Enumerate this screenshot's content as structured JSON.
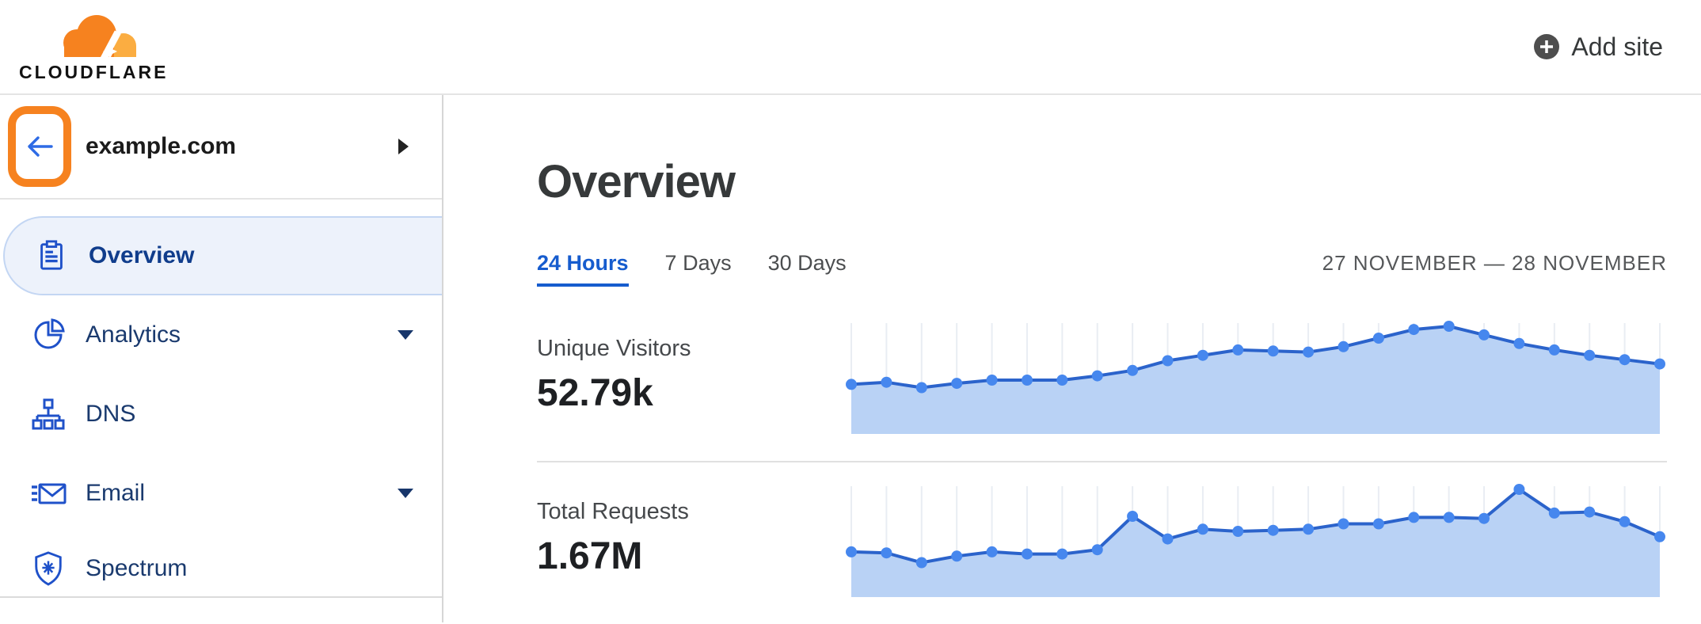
{
  "header": {
    "logo_text": "CLOUDFLARE",
    "add_site_label": "Add site"
  },
  "sidebar": {
    "site_name": "example.com",
    "items": [
      {
        "label": "Overview",
        "icon": "clipboard-icon",
        "active": true,
        "expandable": false
      },
      {
        "label": "Analytics",
        "icon": "pie-chart-icon",
        "active": false,
        "expandable": true
      },
      {
        "label": "DNS",
        "icon": "network-icon",
        "active": false,
        "expandable": false
      },
      {
        "label": "Email",
        "icon": "email-icon",
        "active": false,
        "expandable": true
      },
      {
        "label": "Spectrum",
        "icon": "shield-icon",
        "active": false,
        "expandable": false
      }
    ]
  },
  "main": {
    "title": "Overview",
    "tabs": [
      {
        "label": "24 Hours",
        "active": true
      },
      {
        "label": "7 Days",
        "active": false
      },
      {
        "label": "30 Days",
        "active": false
      }
    ],
    "date_range": "27 NOVEMBER — 28 NOVEMBER"
  },
  "chart_data": [
    {
      "type": "area",
      "title": "Unique Visitors",
      "value_label": "52.79k",
      "period": "24 Hours",
      "values": [
        46,
        48,
        43,
        47,
        50,
        50,
        50,
        54,
        59,
        68,
        73,
        78,
        77,
        76,
        81,
        89,
        97,
        100,
        92,
        84,
        78,
        73,
        69,
        65
      ],
      "ylim": [
        0,
        100
      ],
      "units": "relative height 0-100 (no axis labels shown in UI)",
      "grid": "vertical line per data point, above the curve only",
      "legend": "none"
    },
    {
      "type": "area",
      "title": "Total Requests",
      "value_label": "1.67M",
      "period": "24 Hours",
      "values": [
        42,
        41,
        32,
        38,
        42,
        40,
        40,
        44,
        75,
        54,
        63,
        61,
        62,
        63,
        68,
        68,
        74,
        74,
        73,
        100,
        78,
        79,
        70,
        56
      ],
      "ylim": [
        0,
        100
      ],
      "units": "relative height 0-100 (no axis labels shown in UI)",
      "grid": "vertical line per data point, above the curve only",
      "legend": "none"
    }
  ],
  "colors": {
    "brand_orange": "#F6821F",
    "brand_orange_light": "#FBAD41",
    "highlight_box_orange": "#F6821F",
    "active_tab_blue": "#165CCE",
    "back_arrow_blue": "#2E6BE5",
    "nav_text_navy": "#1A3A6E",
    "nav_icon_blue": "#1F51C9",
    "active_pill_bg": "#EDF2FB",
    "active_pill_border": "#C3D6F3",
    "chart_line": "#2B63CB",
    "chart_dot": "#4687EE",
    "chart_fill": "#B9D2F5",
    "chart_grid": "#E9EDF3",
    "divider_gray": "#E0E0E0"
  }
}
